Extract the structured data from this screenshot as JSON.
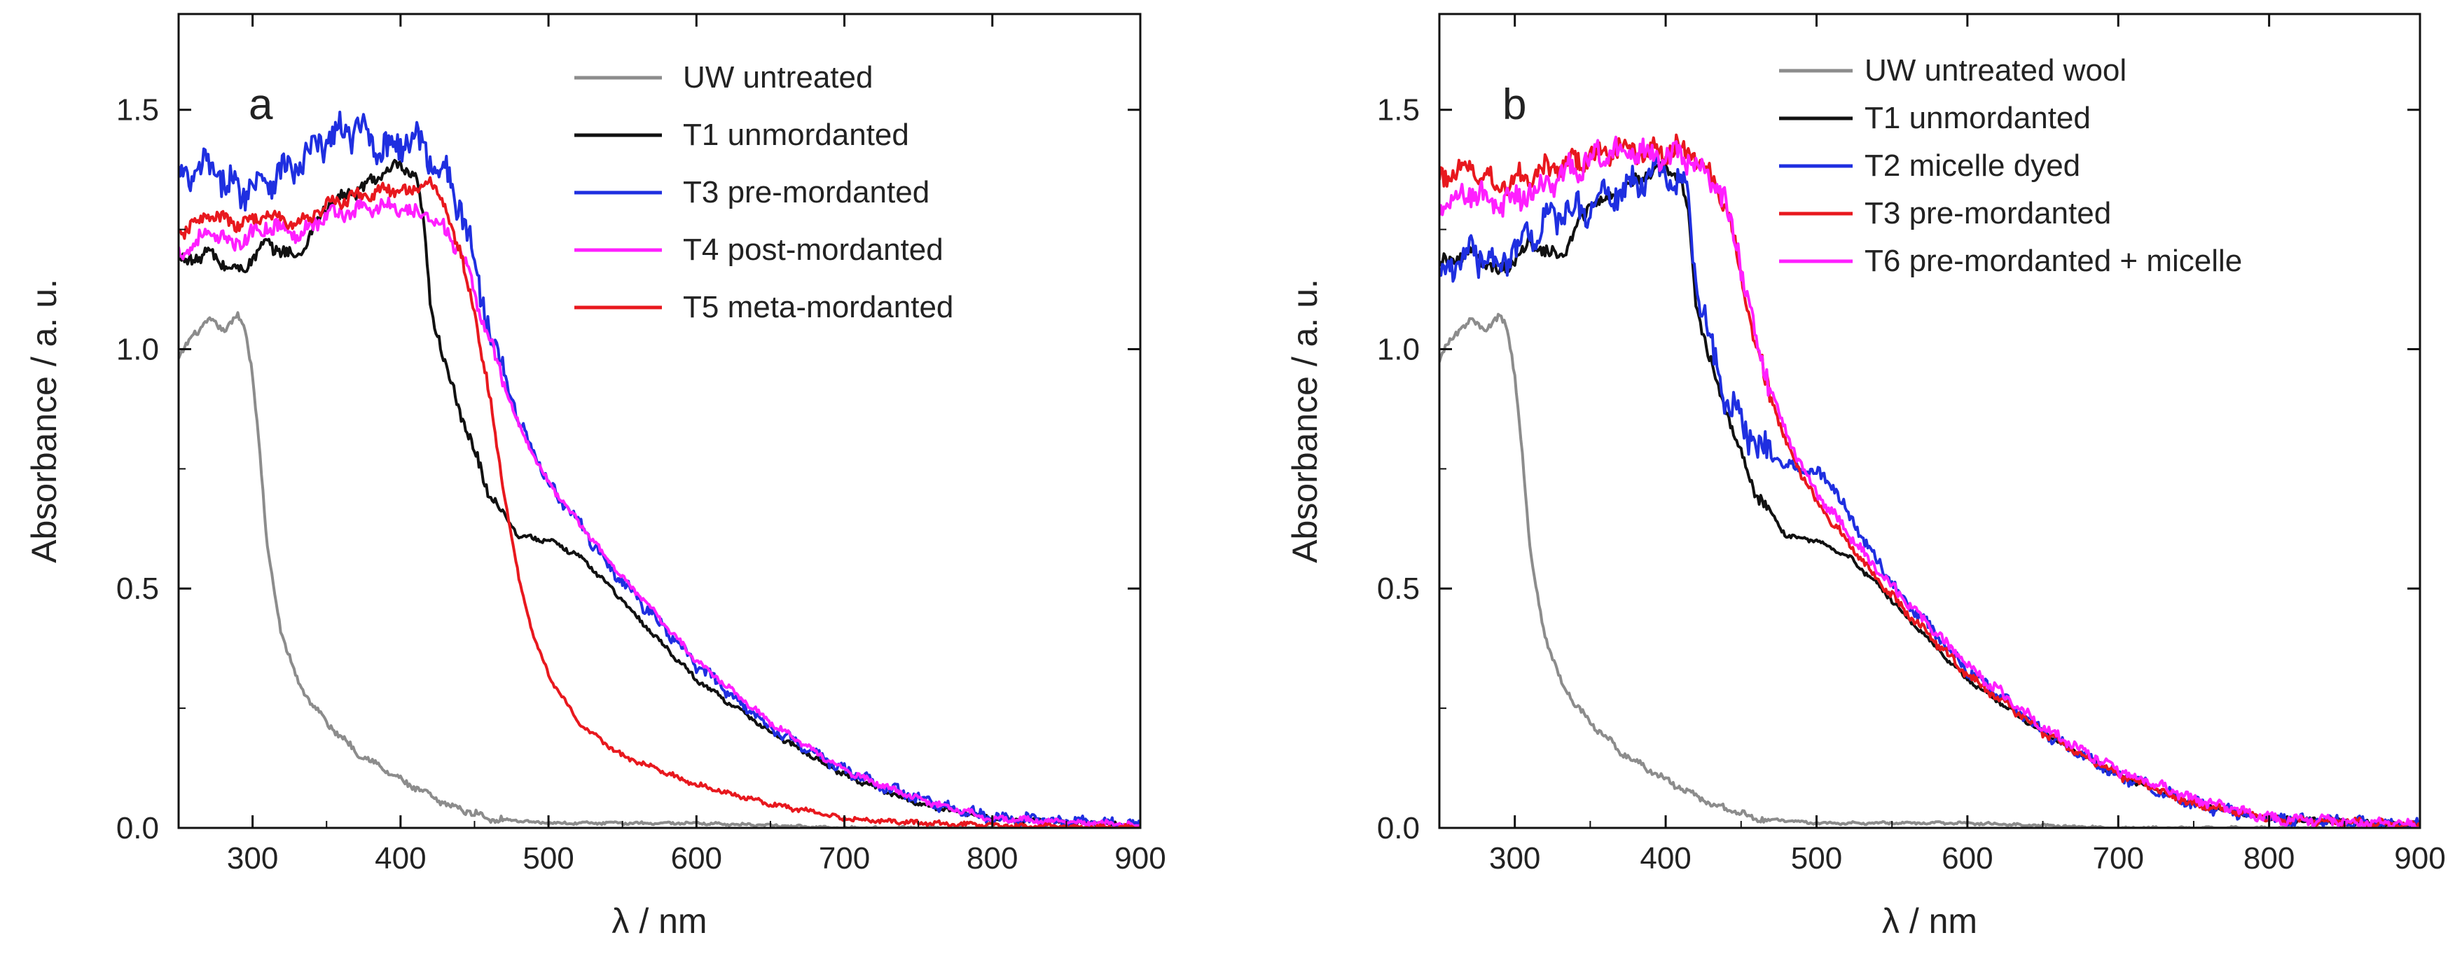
{
  "chart_data": [
    {
      "type": "line",
      "panel_label": "a",
      "xlabel": "λ / nm",
      "ylabel": "Absorbance / a. u.",
      "xlim": [
        250,
        900
      ],
      "ylim": [
        0,
        1.7
      ],
      "xticks": [
        300,
        400,
        500,
        600,
        700,
        800,
        900
      ],
      "yticks": [
        0.0,
        0.5,
        1.0,
        1.5
      ],
      "xtick_labels": [
        "300",
        "400",
        "500",
        "600",
        "700",
        "800",
        "900"
      ],
      "ytick_labels": [
        "0.0",
        "0.5",
        "1.0",
        "1.5"
      ],
      "legend_position": "top-right",
      "series": [
        {
          "name": "UW untreated",
          "color": "#8c8c8c",
          "noise": 0.006,
          "x": [
            250,
            260,
            270,
            280,
            290,
            295,
            300,
            305,
            310,
            320,
            330,
            340,
            350,
            370,
            400,
            430,
            460,
            500,
            550,
            600,
            700,
            800,
            900
          ],
          "y": [
            0.98,
            1.03,
            1.06,
            1.04,
            1.07,
            1.04,
            0.95,
            0.78,
            0.58,
            0.4,
            0.31,
            0.26,
            0.22,
            0.16,
            0.1,
            0.05,
            0.02,
            0.01,
            0.01,
            0.01,
            0.0,
            0.0,
            0.0
          ]
        },
        {
          "name": "T1 unmordanted",
          "color": "#111111",
          "noise": 0.012,
          "x": [
            250,
            270,
            290,
            310,
            330,
            350,
            370,
            390,
            400,
            410,
            415,
            420,
            430,
            440,
            460,
            480,
            500,
            520,
            540,
            560,
            600,
            650,
            700,
            750,
            800,
            900
          ],
          "y": [
            1.18,
            1.2,
            1.16,
            1.22,
            1.19,
            1.3,
            1.33,
            1.37,
            1.38,
            1.36,
            1.28,
            1.1,
            0.97,
            0.87,
            0.7,
            0.61,
            0.6,
            0.57,
            0.51,
            0.44,
            0.31,
            0.2,
            0.11,
            0.05,
            0.02,
            0.005
          ]
        },
        {
          "name": "T3 pre-mordanted",
          "color": "#1f2fe0",
          "noise": 0.03,
          "x": [
            250,
            270,
            290,
            310,
            330,
            350,
            370,
            390,
            410,
            420,
            430,
            440,
            450,
            460,
            480,
            500,
            520,
            540,
            560,
            600,
            650,
            700,
            750,
            800,
            900
          ],
          "y": [
            1.35,
            1.38,
            1.33,
            1.36,
            1.38,
            1.44,
            1.46,
            1.42,
            1.44,
            1.4,
            1.37,
            1.3,
            1.18,
            1.05,
            0.85,
            0.72,
            0.64,
            0.55,
            0.48,
            0.34,
            0.21,
            0.12,
            0.06,
            0.02,
            0.005
          ]
        },
        {
          "name": "T4 post-mordanted",
          "color": "#ff1fff",
          "noise": 0.015,
          "x": [
            250,
            270,
            290,
            310,
            330,
            350,
            370,
            390,
            410,
            420,
            430,
            440,
            450,
            460,
            480,
            500,
            520,
            540,
            560,
            600,
            650,
            700,
            750,
            800,
            900
          ],
          "y": [
            1.2,
            1.24,
            1.22,
            1.26,
            1.24,
            1.28,
            1.29,
            1.3,
            1.28,
            1.28,
            1.25,
            1.2,
            1.12,
            1.02,
            0.84,
            0.72,
            0.64,
            0.56,
            0.49,
            0.35,
            0.22,
            0.12,
            0.06,
            0.02,
            0.005
          ]
        },
        {
          "name": "T5 meta-mordanted",
          "color": "#e8181e",
          "noise": 0.012,
          "x": [
            250,
            270,
            290,
            310,
            330,
            350,
            370,
            390,
            410,
            420,
            430,
            440,
            450,
            460,
            470,
            480,
            490,
            500,
            520,
            550,
            600,
            650,
            700,
            750,
            800,
            900
          ],
          "y": [
            1.24,
            1.28,
            1.26,
            1.28,
            1.26,
            1.3,
            1.32,
            1.33,
            1.33,
            1.35,
            1.3,
            1.2,
            1.08,
            0.9,
            0.7,
            0.52,
            0.4,
            0.32,
            0.22,
            0.15,
            0.09,
            0.05,
            0.02,
            0.01,
            0.005,
            0.0
          ]
        }
      ]
    },
    {
      "type": "line",
      "panel_label": "b",
      "xlabel": "λ / nm",
      "ylabel": "Absorbance / a. u.",
      "xlim": [
        250,
        900
      ],
      "ylim": [
        0,
        1.7
      ],
      "xticks": [
        300,
        400,
        500,
        600,
        700,
        800,
        900
      ],
      "yticks": [
        0.0,
        0.5,
        1.0,
        1.5
      ],
      "xtick_labels": [
        "300",
        "400",
        "500",
        "600",
        "700",
        "800",
        "900"
      ],
      "ytick_labels": [
        "0.0",
        "0.5",
        "1.0",
        "1.5"
      ],
      "legend_position": "top-right",
      "series": [
        {
          "name": "UW untreated wool",
          "color": "#8c8c8c",
          "noise": 0.006,
          "x": [
            250,
            260,
            270,
            280,
            290,
            295,
            300,
            305,
            310,
            320,
            330,
            340,
            350,
            370,
            400,
            430,
            460,
            500,
            550,
            600,
            700,
            800,
            900
          ],
          "y": [
            0.98,
            1.03,
            1.06,
            1.04,
            1.07,
            1.04,
            0.95,
            0.78,
            0.58,
            0.4,
            0.31,
            0.26,
            0.22,
            0.16,
            0.1,
            0.05,
            0.02,
            0.01,
            0.01,
            0.01,
            0.0,
            0.0,
            0.0
          ]
        },
        {
          "name": "T1 unmordanted",
          "color": "#111111",
          "noise": 0.012,
          "x": [
            250,
            270,
            290,
            310,
            330,
            350,
            370,
            390,
            400,
            410,
            415,
            420,
            430,
            440,
            460,
            480,
            500,
            520,
            540,
            560,
            600,
            650,
            700,
            750,
            800,
            900
          ],
          "y": [
            1.18,
            1.2,
            1.16,
            1.22,
            1.19,
            1.3,
            1.33,
            1.37,
            1.38,
            1.36,
            1.28,
            1.1,
            0.97,
            0.87,
            0.7,
            0.61,
            0.6,
            0.57,
            0.51,
            0.44,
            0.31,
            0.2,
            0.11,
            0.05,
            0.02,
            0.005
          ]
        },
        {
          "name": "T2 micelle dyed",
          "color": "#1f2fe0",
          "noise": 0.03,
          "x": [
            250,
            270,
            290,
            310,
            330,
            350,
            370,
            390,
            400,
            410,
            415,
            420,
            430,
            440,
            460,
            480,
            500,
            510,
            520,
            540,
            560,
            600,
            650,
            700,
            750,
            800,
            900
          ],
          "y": [
            1.16,
            1.2,
            1.18,
            1.24,
            1.28,
            1.3,
            1.33,
            1.36,
            1.37,
            1.34,
            1.3,
            1.15,
            1.0,
            0.9,
            0.8,
            0.76,
            0.74,
            0.72,
            0.66,
            0.56,
            0.47,
            0.33,
            0.2,
            0.11,
            0.05,
            0.02,
            0.005
          ]
        },
        {
          "name": "T3 pre-mordanted",
          "color": "#e8181e",
          "noise": 0.02,
          "x": [
            250,
            270,
            290,
            310,
            330,
            350,
            370,
            390,
            410,
            420,
            430,
            440,
            450,
            460,
            480,
            500,
            520,
            540,
            560,
            600,
            650,
            700,
            750,
            800,
            900
          ],
          "y": [
            1.36,
            1.38,
            1.34,
            1.37,
            1.38,
            1.4,
            1.42,
            1.41,
            1.42,
            1.4,
            1.36,
            1.3,
            1.15,
            1.0,
            0.8,
            0.68,
            0.6,
            0.52,
            0.45,
            0.32,
            0.2,
            0.11,
            0.05,
            0.02,
            0.005
          ]
        },
        {
          "name": "T6 pre-mordanted + micelle",
          "color": "#ff1fff",
          "noise": 0.025,
          "x": [
            250,
            270,
            290,
            310,
            330,
            350,
            370,
            390,
            410,
            420,
            430,
            440,
            450,
            460,
            480,
            500,
            520,
            540,
            560,
            600,
            650,
            700,
            750,
            800,
            900
          ],
          "y": [
            1.3,
            1.33,
            1.3,
            1.33,
            1.36,
            1.4,
            1.42,
            1.41,
            1.4,
            1.39,
            1.36,
            1.3,
            1.18,
            1.02,
            0.82,
            0.7,
            0.62,
            0.54,
            0.47,
            0.34,
            0.21,
            0.12,
            0.06,
            0.02,
            0.005
          ]
        }
      ]
    }
  ]
}
